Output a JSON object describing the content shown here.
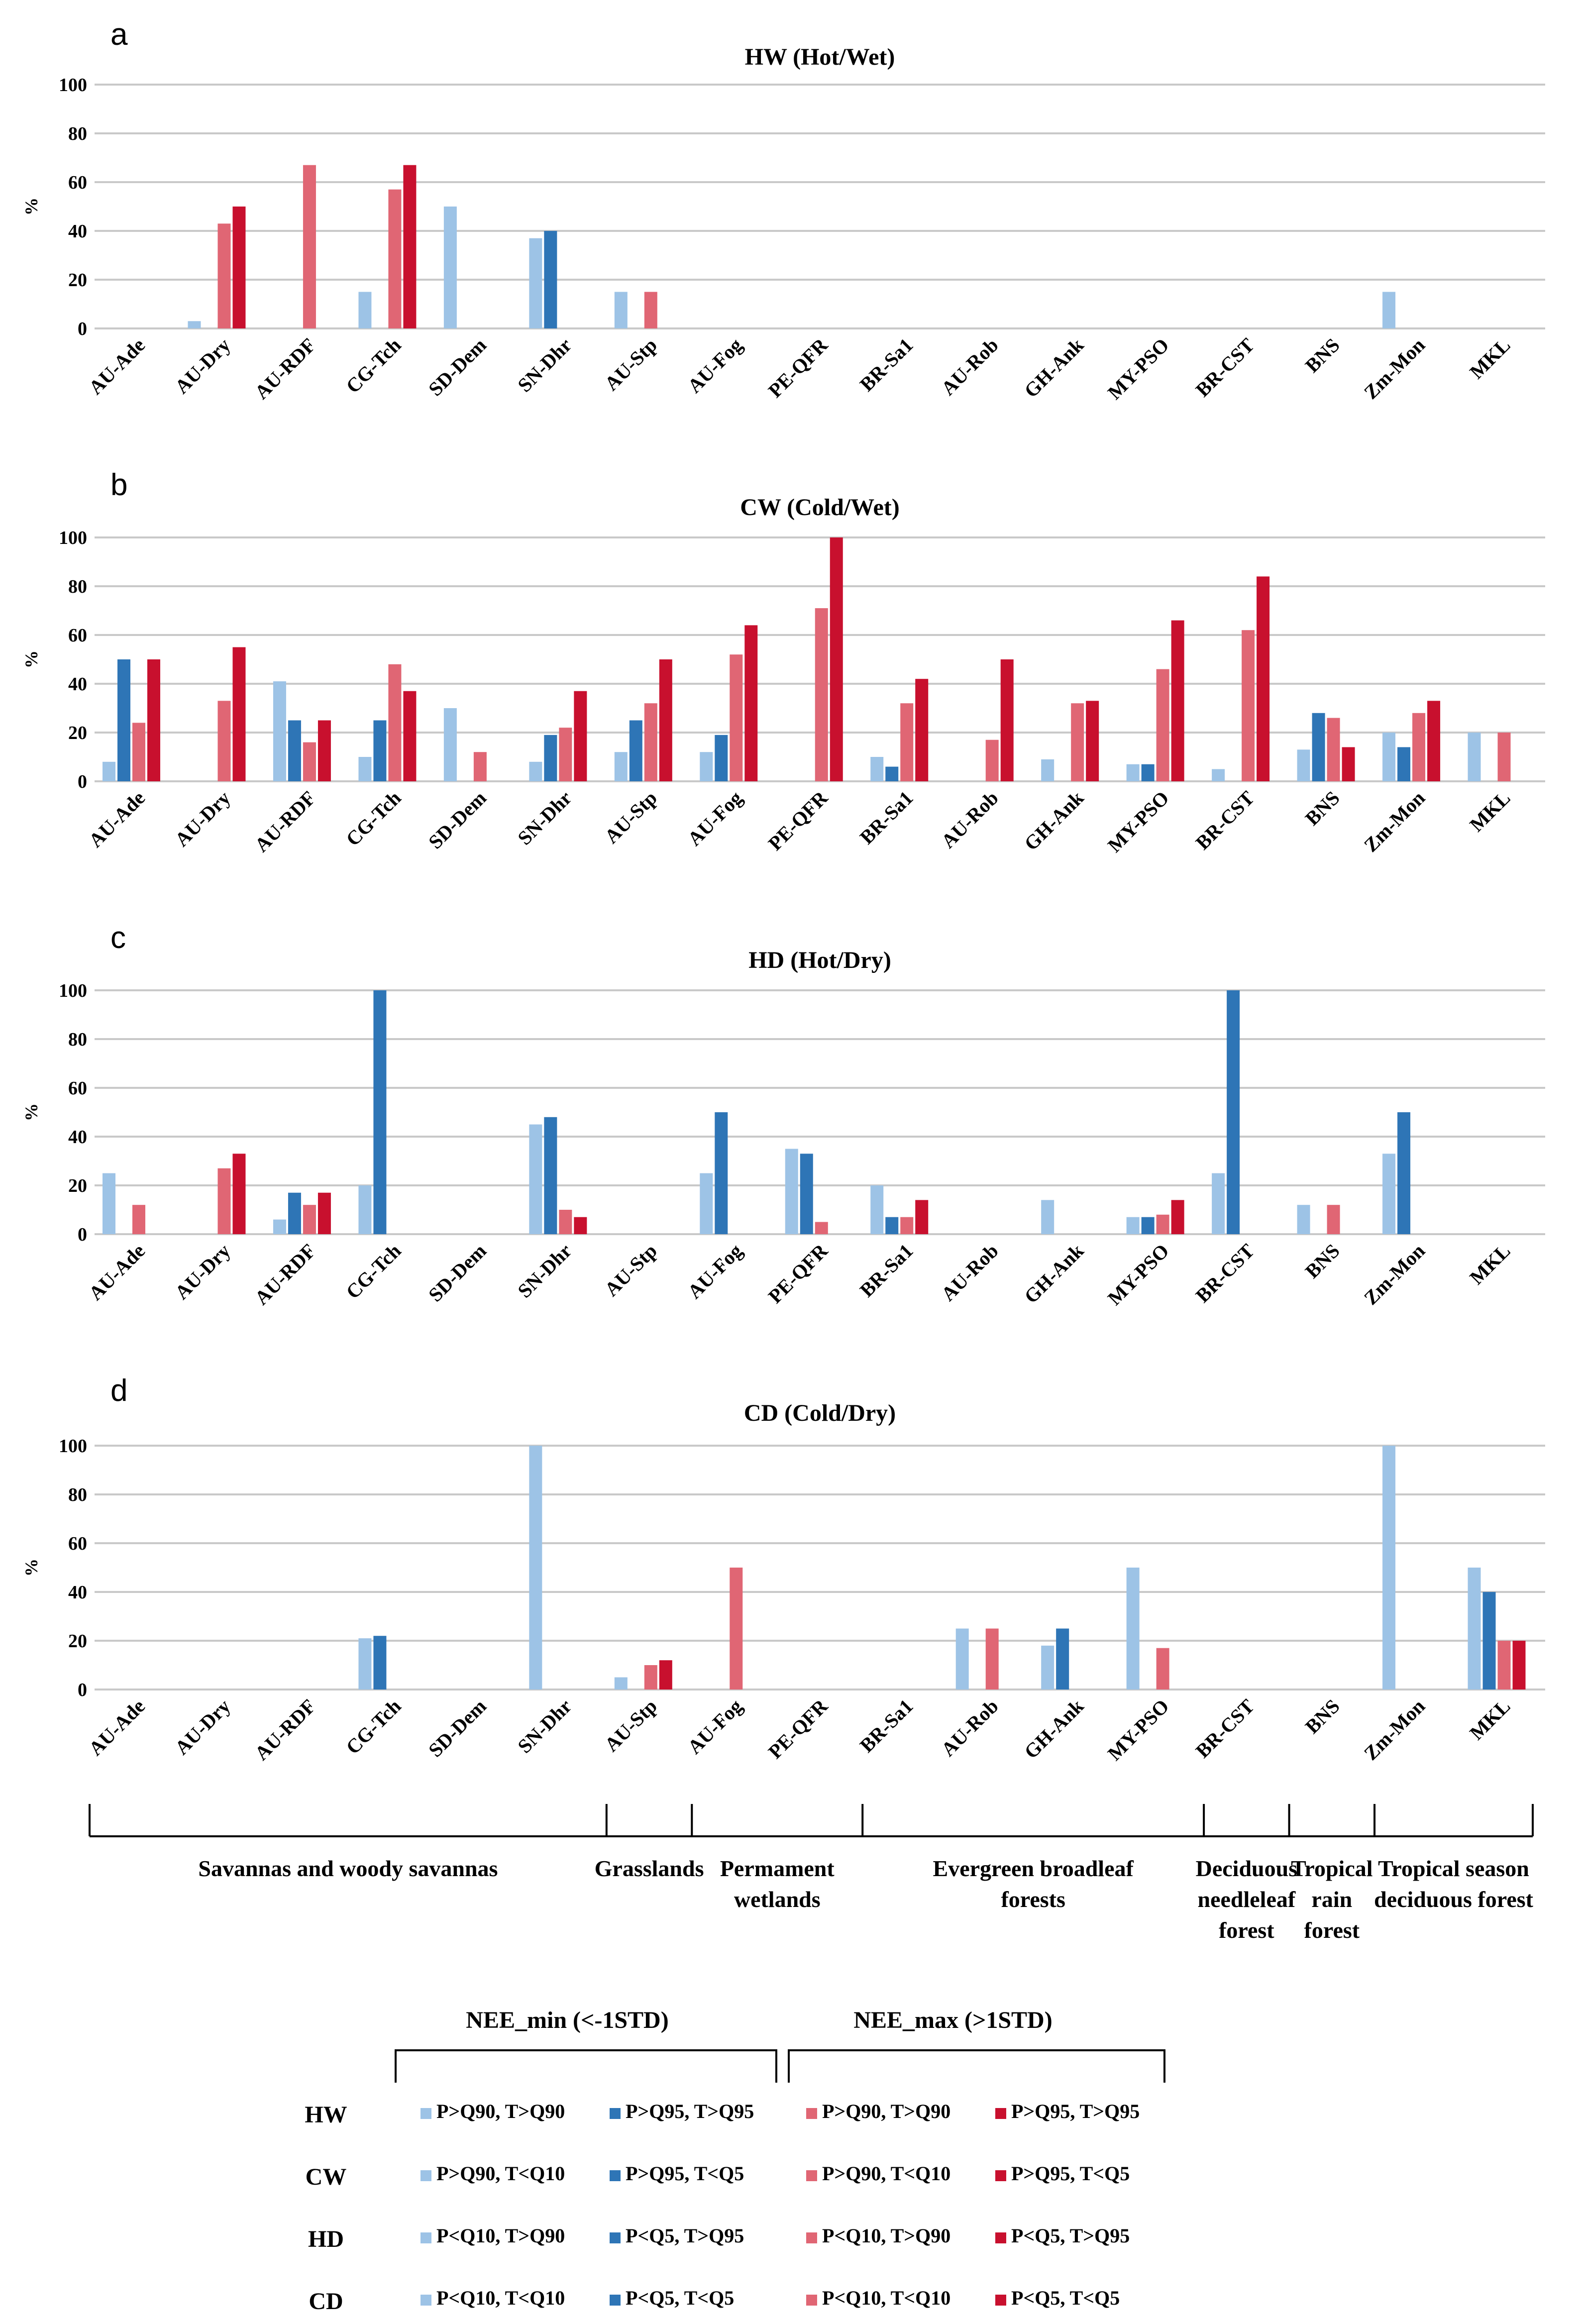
{
  "colors": {
    "min_p90": "#9dc3e6",
    "min_p95": "#2e75b6",
    "max_p90": "#e06674",
    "max_p95": "#c8102e"
  },
  "sites": [
    "AU-Ade",
    "AU-Dry",
    "AU-RDF",
    "CG-Tch",
    "SD-Dem",
    "SN-Dhr",
    "AU-Stp",
    "AU-Fog",
    "PE-QFR",
    "BR-Sa1",
    "AU-Rob",
    "GH-Ank",
    "MY-PSO",
    "BR-CST",
    "BNS",
    "Zm-Mon",
    "MKL"
  ],
  "chart_data": [
    {
      "type": "bar",
      "panel": "a",
      "title": "HW (Hot/Wet)",
      "ylabel": "%",
      "ylim": [
        0,
        100
      ],
      "yticks": [
        0,
        20,
        40,
        60,
        80,
        100
      ],
      "grid": true,
      "series": [
        {
          "name": "P>Q90, T>Q90",
          "values": [
            0,
            3,
            0,
            15,
            50,
            37,
            15,
            0,
            0,
            0,
            0,
            0,
            0,
            0,
            0,
            15,
            0
          ]
        },
        {
          "name": "P>Q95, T>Q95",
          "values": [
            0,
            0,
            0,
            0,
            0,
            40,
            0,
            0,
            0,
            0,
            0,
            0,
            0,
            0,
            0,
            0,
            0
          ]
        },
        {
          "name": "P>Q90, T>Q90",
          "values": [
            0,
            43,
            67,
            57,
            0,
            0,
            15,
            0,
            0,
            0,
            0,
            0,
            0,
            0,
            0,
            0,
            0
          ]
        },
        {
          "name": "P>Q95, T>Q95",
          "values": [
            0,
            50,
            0,
            67,
            0,
            0,
            0,
            0,
            0,
            0,
            0,
            0,
            0,
            0,
            0,
            0,
            0
          ]
        }
      ]
    },
    {
      "type": "bar",
      "panel": "b",
      "title": "CW (Cold/Wet)",
      "ylabel": "%",
      "ylim": [
        0,
        100
      ],
      "yticks": [
        0,
        20,
        40,
        60,
        80,
        100
      ],
      "grid": true,
      "series": [
        {
          "name": "P>Q90, T<Q10",
          "values": [
            8,
            0,
            41,
            10,
            30,
            8,
            12,
            12,
            0,
            10,
            0,
            9,
            7,
            5,
            13,
            20,
            20
          ]
        },
        {
          "name": "P>Q95, T<Q5",
          "values": [
            50,
            0,
            25,
            25,
            0,
            19,
            25,
            19,
            0,
            6,
            0,
            0,
            7,
            0,
            28,
            14,
            0
          ]
        },
        {
          "name": "P>Q90, T<Q10",
          "values": [
            24,
            33,
            16,
            48,
            12,
            22,
            32,
            52,
            71,
            32,
            17,
            32,
            46,
            62,
            26,
            28,
            20
          ]
        },
        {
          "name": "P>Q95, T<Q5",
          "values": [
            50,
            55,
            25,
            37,
            0,
            37,
            50,
            64,
            100,
            42,
            50,
            33,
            66,
            84,
            14,
            33,
            0
          ]
        }
      ]
    },
    {
      "type": "bar",
      "panel": "c",
      "title": "HD (Hot/Dry)",
      "ylabel": "%",
      "ylim": [
        0,
        100
      ],
      "yticks": [
        0,
        20,
        40,
        60,
        80,
        100
      ],
      "grid": true,
      "series": [
        {
          "name": "P<Q10, T>Q90",
          "values": [
            25,
            0,
            6,
            20,
            0,
            45,
            0,
            25,
            35,
            20,
            0,
            14,
            7,
            25,
            12,
            33,
            0
          ]
        },
        {
          "name": "P<Q5, T>Q95",
          "values": [
            0,
            0,
            17,
            100,
            0,
            48,
            0,
            50,
            33,
            7,
            0,
            0,
            7,
            100,
            0,
            50,
            0
          ]
        },
        {
          "name": "P<Q10, T>Q90",
          "values": [
            12,
            27,
            12,
            0,
            0,
            10,
            0,
            0,
            5,
            7,
            0,
            0,
            8,
            0,
            12,
            0,
            0
          ]
        },
        {
          "name": "P<Q5, T>Q95",
          "values": [
            0,
            33,
            17,
            0,
            0,
            7,
            0,
            0,
            0,
            14,
            0,
            0,
            14,
            0,
            0,
            0,
            0
          ]
        }
      ]
    },
    {
      "type": "bar",
      "panel": "d",
      "title": "CD (Cold/Dry)",
      "ylabel": "%",
      "ylim": [
        0,
        100
      ],
      "yticks": [
        0,
        20,
        40,
        60,
        80,
        100
      ],
      "grid": true,
      "series": [
        {
          "name": "P<Q10, T<Q10",
          "values": [
            0,
            0,
            0,
            21,
            0,
            100,
            5,
            0,
            0,
            0,
            25,
            18,
            50,
            0,
            0,
            100,
            50
          ]
        },
        {
          "name": "P<Q5, T<Q5",
          "values": [
            0,
            0,
            0,
            22,
            0,
            0,
            0,
            0,
            0,
            0,
            0,
            25,
            0,
            0,
            0,
            0,
            40
          ]
        },
        {
          "name": "P<Q10, T<Q10",
          "values": [
            0,
            0,
            0,
            0,
            0,
            0,
            10,
            50,
            0,
            0,
            25,
            0,
            17,
            0,
            0,
            0,
            20
          ]
        },
        {
          "name": "P<Q5, T<Q5",
          "values": [
            0,
            0,
            0,
            0,
            0,
            0,
            12,
            0,
            0,
            0,
            0,
            0,
            0,
            0,
            0,
            0,
            20
          ]
        }
      ]
    }
  ],
  "groups": [
    {
      "lines": [
        "Savannas and woody savannas"
      ],
      "start": 0,
      "end": 5
    },
    {
      "lines": [
        "Grasslands"
      ],
      "start": 5,
      "end": 6
    },
    {
      "lines": [
        "Permament",
        "wetlands"
      ],
      "start": 7,
      "end": 8
    },
    {
      "lines": [
        "Evergreen broadleaf",
        "forests"
      ],
      "start": 9,
      "end": 12
    },
    {
      "lines": [
        "Deciduous",
        "needleleaf",
        "forest"
      ],
      "start": 13,
      "end": 13
    },
    {
      "lines": [
        "Tropical",
        "rain",
        "forest"
      ],
      "start": 14,
      "end": 14
    },
    {
      "lines": [
        "Tropical season",
        "deciduous forest"
      ],
      "start": 15,
      "end": 16
    }
  ],
  "legend": {
    "head_min": "NEE_min (<-1STD)",
    "head_max": "NEE_max (>1STD)",
    "rows": [
      {
        "label": "HW",
        "entries": [
          "P>Q90, T>Q90",
          "P>Q95, T>Q95",
          "P>Q90, T>Q90",
          "P>Q95, T>Q95"
        ]
      },
      {
        "label": "CW",
        "entries": [
          "P>Q90, T<Q10",
          "P>Q95, T<Q5",
          "P>Q90, T<Q10",
          "P>Q95, T<Q5"
        ]
      },
      {
        "label": "HD",
        "entries": [
          "P<Q10, T>Q90",
          "P<Q5, T>Q95",
          "P<Q10, T>Q90",
          "P<Q5, T>Q95"
        ]
      },
      {
        "label": "CD",
        "entries": [
          "P<Q10, T<Q10",
          "P<Q5, T<Q5",
          "P<Q10, T<Q10",
          "P<Q5, T<Q5"
        ]
      }
    ]
  }
}
